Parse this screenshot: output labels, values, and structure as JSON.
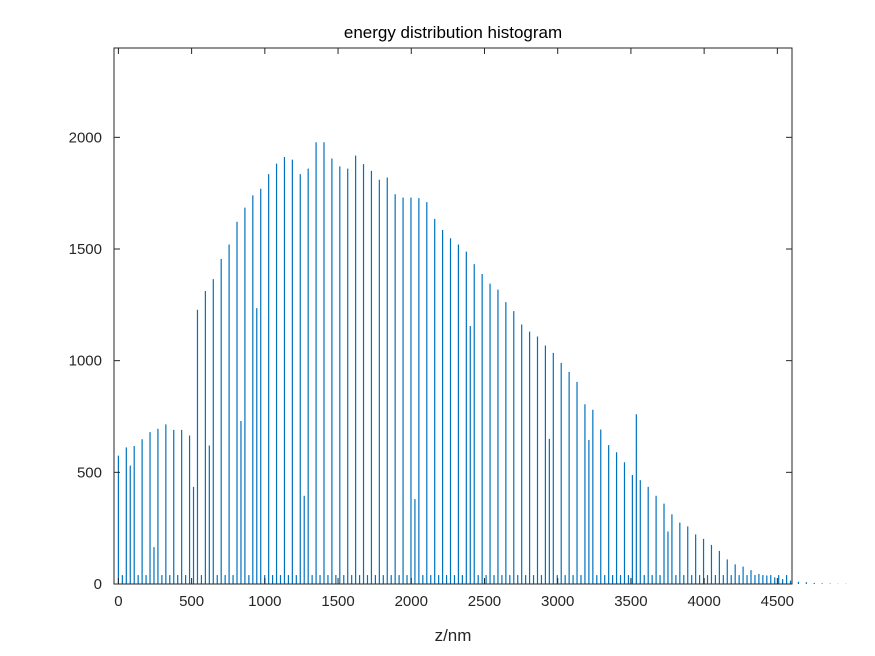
{
  "chart_data": {
    "type": "bar",
    "title": "energy distribution histogram",
    "xlabel": "z/nm",
    "ylabel": "",
    "xlim": [
      -30,
      4600
    ],
    "ylim": [
      0,
      2400
    ],
    "xticks": [
      "0",
      "500",
      "1000",
      "1500",
      "2000",
      "2500",
      "3000",
      "3500",
      "4000",
      "4500"
    ],
    "yticks": [
      "0",
      "500",
      "1000",
      "1500",
      "2000"
    ],
    "grid": false,
    "color": "#0072BD",
    "bar_spacing": 54,
    "minor_offset": 27,
    "values": [
      575,
      612,
      618,
      648,
      680,
      695,
      715,
      690,
      690,
      665,
      1228,
      1312,
      1365,
      1455,
      1520,
      1622,
      1685,
      1740,
      1770,
      1835,
      1882,
      1912,
      1900,
      1835,
      1860,
      1978,
      1978,
      1905,
      1870,
      1860,
      1918,
      1880,
      1850,
      1810,
      1820,
      1745,
      1730,
      1730,
      1728,
      1710,
      1635,
      1585,
      1548,
      1520,
      1488,
      1432,
      1388,
      1345,
      1318,
      1262,
      1222,
      1162,
      1130,
      1108,
      1068,
      1035,
      990,
      950,
      905,
      805,
      780,
      692,
      622,
      590,
      545,
      488,
      465,
      435,
      395,
      360,
      312,
      275,
      258,
      222,
      202,
      175,
      148,
      110,
      88,
      78,
      62,
      45,
      38,
      30,
      22,
      15,
      10,
      8,
      5,
      3,
      2,
      1,
      1
    ],
    "minor_values": [
      40,
      530,
      40,
      40,
      165,
      40,
      40,
      40,
      40,
      435,
      40,
      620,
      40,
      40,
      40,
      730,
      40,
      1235,
      40,
      40,
      40,
      40,
      40,
      395,
      40,
      40,
      40,
      40,
      40,
      40,
      40,
      40,
      40,
      40,
      40,
      40,
      40,
      380,
      40,
      40,
      40,
      40,
      40,
      40,
      1155,
      40,
      40,
      40,
      40,
      40,
      40,
      40,
      40,
      40,
      650,
      40,
      40,
      40,
      40,
      645,
      40,
      40,
      40,
      40,
      40,
      760,
      40,
      40,
      40,
      235,
      40,
      40,
      40,
      40,
      40,
      40,
      40,
      40,
      40,
      40,
      40,
      40,
      40,
      40,
      40,
      85,
      40,
      20,
      20,
      20,
      20,
      20,
      20,
      15,
      15,
      10,
      10,
      5,
      5,
      3,
      2,
      1
    ]
  }
}
